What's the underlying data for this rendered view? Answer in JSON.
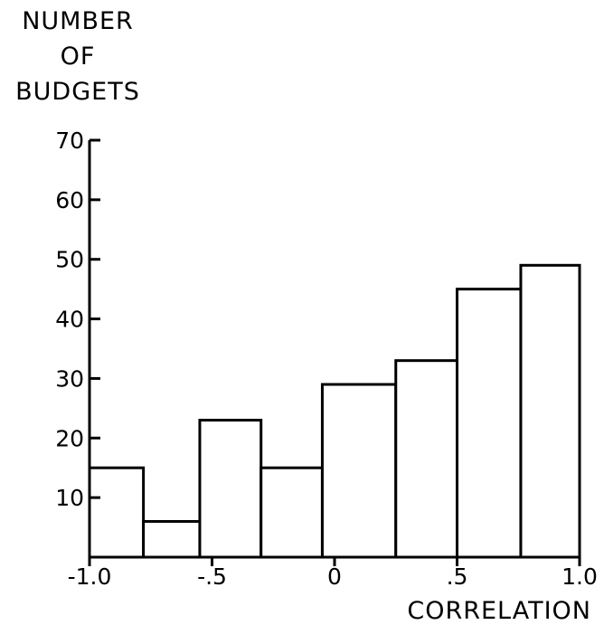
{
  "chart_data": {
    "type": "bar",
    "title": "",
    "ylabel_lines": [
      "NUMBER",
      "OF",
      "BUDGETS"
    ],
    "xlabel": "CORRELATION",
    "ylim": [
      0,
      70
    ],
    "xlim": [
      -1.0,
      1.0
    ],
    "y_ticks": [
      10,
      20,
      30,
      40,
      50,
      60,
      70
    ],
    "y_tick_labels": [
      "10",
      "20",
      "30",
      "40",
      "50",
      "60",
      "70"
    ],
    "x_ticks": [
      -1.0,
      -0.5,
      0,
      0.5,
      1.0
    ],
    "x_tick_labels": [
      "-1.0",
      "-.5",
      "0",
      ".5",
      "1.0"
    ],
    "bins": [
      {
        "x0": -1.0,
        "x1": -0.78,
        "value": 15
      },
      {
        "x0": -0.78,
        "x1": -0.55,
        "value": 6
      },
      {
        "x0": -0.55,
        "x1": -0.3,
        "value": 23
      },
      {
        "x0": -0.3,
        "x1": -0.05,
        "value": 15
      },
      {
        "x0": -0.05,
        "x1": 0.25,
        "value": 29
      },
      {
        "x0": 0.25,
        "x1": 0.5,
        "value": 33
      },
      {
        "x0": 0.5,
        "x1": 0.76,
        "value": 45
      },
      {
        "x0": 0.76,
        "x1": 1.0,
        "value": 49
      }
    ],
    "grid": false,
    "legend": "none"
  }
}
